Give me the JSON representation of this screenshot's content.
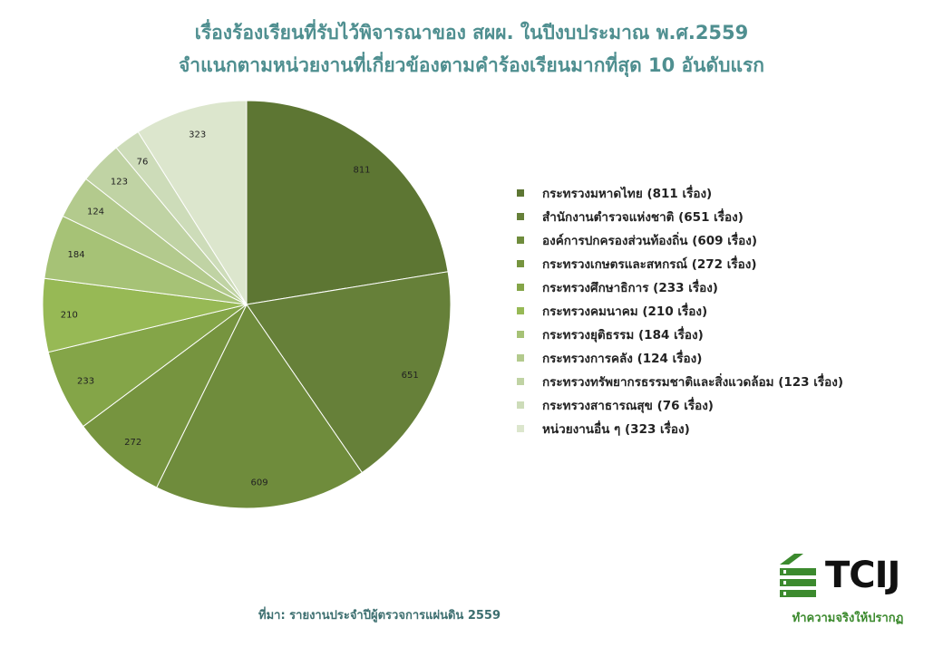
{
  "title": {
    "line1": "เรื่องร้องเรียนที่รับไว้พิจารณาของ สผผ. ในปีงบประมาณ พ.ศ.2559",
    "line2": "จำแนกตามหน่วยงานที่เกี่ยวข้องตามคำร้องเรียนมากที่สุด 10 อันดับแรก"
  },
  "chart_data": {
    "type": "pie",
    "title": "เรื่องร้องเรียนที่รับไว้พิจารณาของ สผผ. ในปีงบประมาณ พ.ศ.2559 จำแนกตามหน่วยงานที่เกี่ยวข้องตามคำร้องเรียนมากที่สุด 10 อันดับแรก",
    "legend_position": "right",
    "categories": [
      "กระทรวงมหาดไทย",
      "สำนักงานตำรวจแห่งชาติ",
      "องค์การปกครองส่วนท้องถิ่น",
      "กระทรวงเกษตรและสหกรณ์",
      "กระทรวงศึกษาธิการ",
      "กระทรวงคมนาคม",
      "กระทรวงยุติธรรม",
      "กระทรวงการคลัง",
      "กระทรวงทรัพยากรธรรมชาติและสิ่งแวดล้อม",
      "กระทรวงสาธารณสุข",
      "หน่วยงานอื่น ๆ"
    ],
    "values": [
      811,
      651,
      609,
      272,
      233,
      210,
      184,
      124,
      123,
      76,
      323
    ],
    "legend_labels": [
      "กระทรวงมหาดไทย (811 เรื่อง)",
      "สำนักงานตำรวจแห่งชาติ (651 เรื่อง)",
      "องค์การปกครองส่วนท้องถิ่น (609 เรื่อง)",
      "กระทรวงเกษตรและสหกรณ์ (272 เรื่อง)",
      "กระทรวงศึกษาธิการ (233 เรื่อง)",
      "กระทรวงคมนาคม (210 เรื่อง)",
      "กระทรวงยุติธรรม (184 เรื่อง)",
      "กระทรวงการคลัง (124 เรื่อง)",
      "กระทรวงทรัพยากรธรรมชาติและสิ่งแวดล้อม (123 เรื่อง)",
      "กระทรวงสาธารณสุข (76 เรื่อง)",
      "หน่วยงานอื่น ๆ (323 เรื่อง)"
    ],
    "colors": [
      "#5d7633",
      "#668039",
      "#6f8c3c",
      "#76943f",
      "#84a548",
      "#97b955",
      "#a6c276",
      "#b3ca8d",
      "#c0d3a4",
      "#cddcb9",
      "#dce6cd"
    ]
  },
  "source": "ที่มา: รายงานประจำปีผู้ตรวจการแผ่นดิน 2559",
  "logo": {
    "text": "TCIJ",
    "tagline": "ทำความจริงให้ปรากฏ",
    "color": "#3c8a2e"
  }
}
